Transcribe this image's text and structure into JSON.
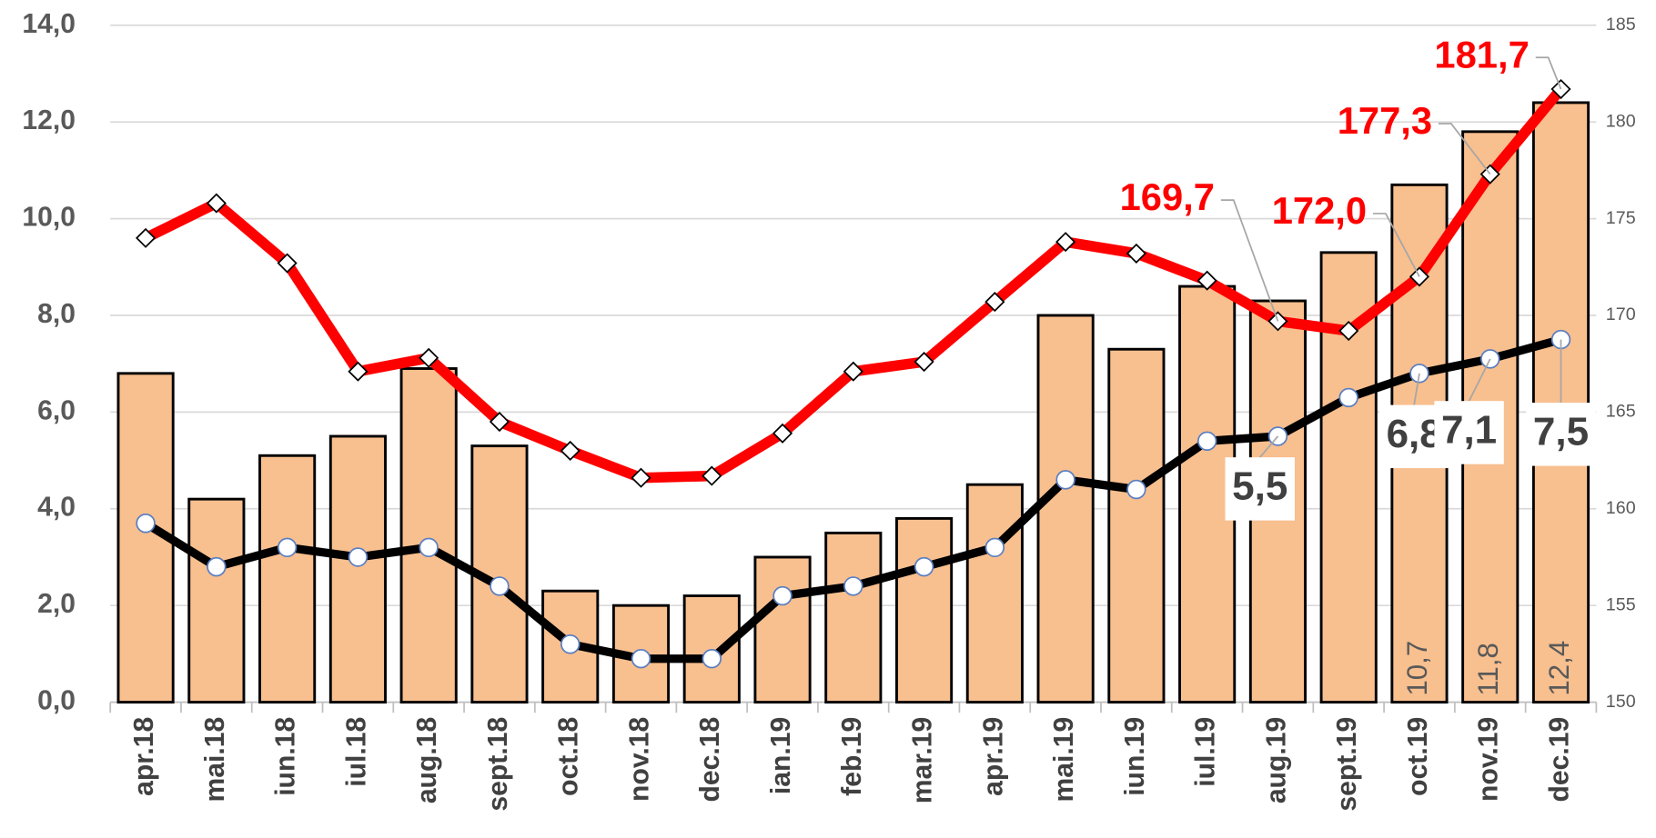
{
  "chart_data": {
    "type": "bar-line",
    "categories": [
      "apr.18",
      "mai.18",
      "iun.18",
      "iul.18",
      "aug.18",
      "sept.18",
      "oct.18",
      "nov.18",
      "dec.18",
      "ian.19",
      "feb.19",
      "mar.19",
      "apr.19",
      "mai.19",
      "iun.19",
      "iul.19",
      "aug.19",
      "sept.19",
      "oct.19",
      "nov.19",
      "dec.19"
    ],
    "series": [
      {
        "type": "bar",
        "color": "#f8bf8f",
        "values": [
          6.8,
          4.2,
          5.1,
          5.5,
          6.9,
          5.3,
          2.3,
          2.0,
          2.2,
          3.0,
          3.5,
          3.8,
          4.5,
          8.0,
          7.3,
          8.6,
          8.3,
          9.3,
          10.7,
          11.8,
          12.4
        ],
        "value_labels": [
          null,
          null,
          null,
          null,
          null,
          null,
          null,
          null,
          null,
          null,
          null,
          null,
          null,
          null,
          null,
          null,
          null,
          null,
          "10,7",
          "11,8",
          "12,4"
        ]
      },
      {
        "type": "line",
        "color": "#000000",
        "values": [
          3.7,
          2.8,
          3.2,
          3.0,
          3.2,
          2.4,
          1.2,
          0.9,
          0.9,
          2.2,
          2.4,
          2.8,
          3.2,
          4.6,
          4.4,
          5.4,
          5.5,
          6.3,
          6.8,
          7.1,
          7.5
        ],
        "value_labels": [
          null,
          null,
          null,
          null,
          null,
          null,
          null,
          null,
          null,
          null,
          null,
          null,
          null,
          null,
          null,
          null,
          "5,5",
          null,
          "6,8",
          "7,1",
          "7,5"
        ]
      },
      {
        "type": "line",
        "color": "#ff0000",
        "axis": "y2",
        "values": [
          174.0,
          175.8,
          172.7,
          167.1,
          167.8,
          164.5,
          163.0,
          161.6,
          161.7,
          163.9,
          167.1,
          167.6,
          170.7,
          173.8,
          173.2,
          171.8,
          169.7,
          169.2,
          172.0,
          177.3,
          181.7
        ],
        "value_labels": [
          null,
          null,
          null,
          null,
          null,
          null,
          null,
          null,
          null,
          null,
          null,
          null,
          null,
          null,
          null,
          null,
          "169,7",
          null,
          "172,0",
          "177,3",
          "181,7"
        ]
      }
    ],
    "ylim": [
      0,
      14
    ],
    "yticks": [
      {
        "value": 0,
        "label": "0,0"
      },
      {
        "value": 2,
        "label": "2,0"
      },
      {
        "value": 4,
        "label": "4,0"
      },
      {
        "value": 6,
        "label": "6,0"
      },
      {
        "value": 8,
        "label": "8,0"
      },
      {
        "value": 10,
        "label": "10,0"
      },
      {
        "value": 12,
        "label": "12,0"
      },
      {
        "value": 14,
        "label": "14,0"
      }
    ],
    "y2lim": [
      150,
      185
    ],
    "y2ticks": [
      150,
      155,
      160,
      165,
      170,
      175,
      180,
      185
    ],
    "grid": true
  }
}
